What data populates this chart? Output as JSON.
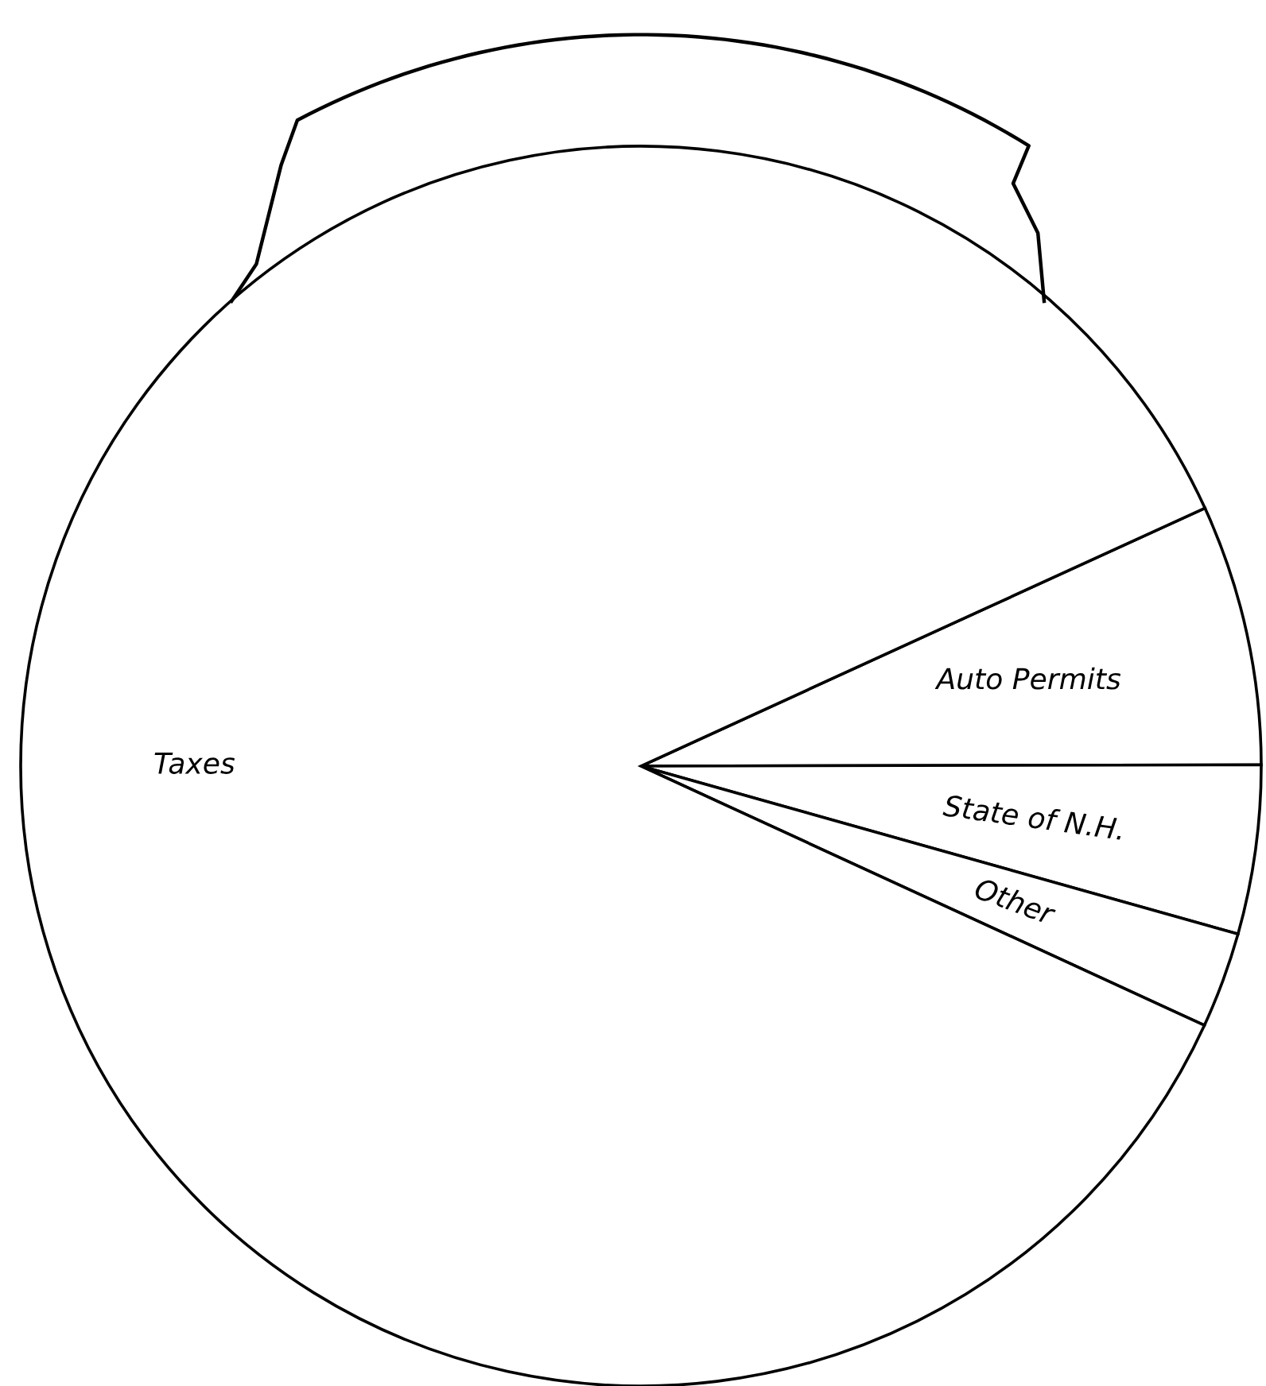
{
  "chart_data": {
    "type": "pie",
    "categories": [
      "Auto Permits",
      "State of N.H.",
      "Other",
      "Taxes"
    ],
    "values": [
      6.8,
      4.4,
      2.5,
      86.3
    ],
    "colors": [
      "#ffffff",
      "#ffffff",
      "#ffffff",
      "#ffffff"
    ]
  }
}
